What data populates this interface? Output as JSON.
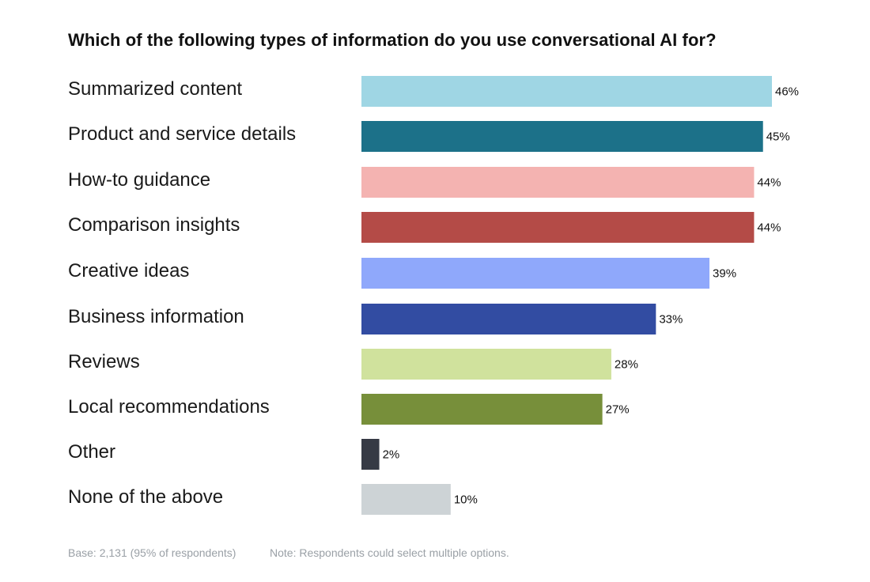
{
  "chart_data": {
    "type": "bar",
    "orientation": "horizontal",
    "title": "Which of the following types of information do you use conversational AI for?",
    "xlabel": "",
    "ylabel": "",
    "xlim": [
      0,
      46
    ],
    "grid": false,
    "categories": [
      "Summarized content",
      "Product and service details",
      "How-to guidance",
      "Comparison insights",
      "Creative ideas",
      "Business information",
      "Reviews",
      "Local recommendations",
      "Other",
      "None of the above"
    ],
    "values": [
      46,
      45,
      44,
      44,
      39,
      33,
      28,
      27,
      2,
      10
    ],
    "value_labels": [
      "46%",
      "45%",
      "44%",
      "44%",
      "39%",
      "33%",
      "28%",
      "27%",
      "2%",
      "10%"
    ],
    "colors": [
      "#9fd6e4",
      "#1c7189",
      "#f4b3b1",
      "#b44b47",
      "#8fa8fb",
      "#324ca2",
      "#d0e29d",
      "#778f3a",
      "#363a45",
      "#cdd3d6"
    ]
  },
  "footer": {
    "base": "Base: 2,131 (95% of respondents)",
    "note": "Note: Respondents could select multiple options."
  }
}
